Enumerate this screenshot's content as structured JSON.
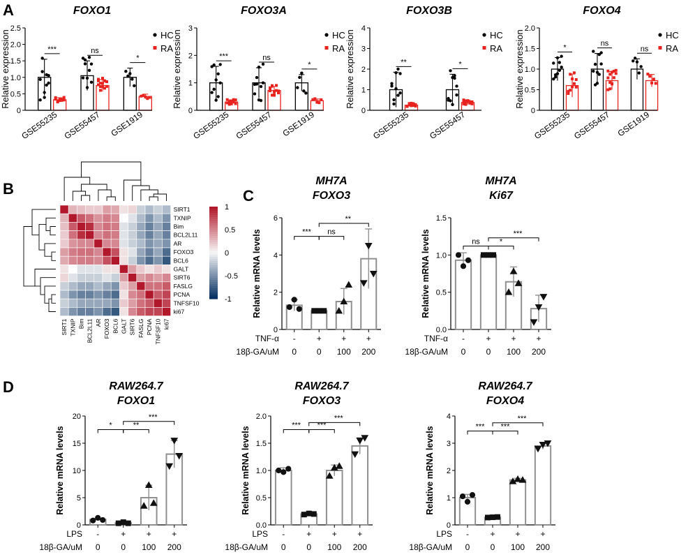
{
  "colors": {
    "hc": "#000000",
    "ra": "#e8231f",
    "bar": "#909090",
    "point": "#111111"
  },
  "panels": {
    "A": {
      "letter": "A",
      "legend": [
        "HC",
        "RA"
      ],
      "ylabel": "Relative expression"
    },
    "B": {
      "letter": "B"
    },
    "C": {
      "letter": "C",
      "ylabel": "Relative mRNA levels"
    },
    "D": {
      "letter": "D",
      "ylabel": "Relative mRNA levels"
    }
  },
  "chart_data": [
    {
      "id": "A1",
      "type": "bar",
      "title": "FOXO1",
      "ylabel": "Relative expression",
      "ylim": [
        0,
        2.5
      ],
      "yticks": [
        "0",
        "0.5",
        "1.0",
        "1.5",
        "2.0",
        "2.5"
      ],
      "ytick_values": [
        0,
        0.5,
        1,
        1.5,
        2,
        2.5
      ],
      "categories": [
        "GSE55235",
        "GSE55457",
        "GSE1919"
      ],
      "series": [
        {
          "name": "HC",
          "values": [
            1.0,
            1.05,
            1.0
          ],
          "errors": [
            0.55,
            0.45,
            0.28
          ],
          "n": [
            10,
            10,
            5
          ]
        },
        {
          "name": "RA",
          "values": [
            0.32,
            0.75,
            0.42
          ],
          "errors": [
            0.06,
            0.18,
            0.07
          ],
          "n": [
            10,
            13,
            5
          ]
        }
      ],
      "significance": [
        "***",
        "ns",
        "*"
      ]
    },
    {
      "id": "A2",
      "type": "bar",
      "title": "FOXO3A",
      "ylabel": "Relative expression",
      "ylim": [
        0,
        3
      ],
      "yticks": [
        "0",
        "1",
        "2",
        "3"
      ],
      "ytick_values": [
        0,
        1,
        2,
        3
      ],
      "categories": [
        "GSE55235",
        "GSE55457",
        "GSE1919"
      ],
      "series": [
        {
          "name": "HC",
          "values": [
            1.0,
            1.0,
            1.0
          ],
          "errors": [
            0.6,
            0.55,
            0.3
          ],
          "n": [
            10,
            10,
            5
          ]
        },
        {
          "name": "RA",
          "values": [
            0.3,
            0.72,
            0.35
          ],
          "errors": [
            0.08,
            0.15,
            0.06
          ],
          "n": [
            10,
            13,
            5
          ]
        }
      ],
      "significance": [
        "***",
        "ns",
        "*"
      ]
    },
    {
      "id": "A3",
      "type": "bar",
      "title": "FOXO3B",
      "ylabel": "Relative expression",
      "ylim": [
        0,
        4
      ],
      "yticks": [
        "0",
        "1",
        "2",
        "3",
        "4"
      ],
      "ytick_values": [
        0,
        1,
        2,
        3,
        4
      ],
      "categories": [
        "GSE55235",
        "GSE55457"
      ],
      "series": [
        {
          "name": "HC",
          "values": [
            1.0,
            1.0
          ],
          "errors": [
            0.85,
            0.75
          ],
          "n": [
            10,
            10
          ]
        },
        {
          "name": "RA",
          "values": [
            0.25,
            0.38
          ],
          "errors": [
            0.08,
            0.1
          ],
          "n": [
            10,
            13
          ]
        }
      ],
      "significance": [
        "**",
        "*"
      ]
    },
    {
      "id": "A4",
      "type": "bar",
      "title": "FOXO4",
      "ylabel": "Relative expression",
      "ylim": [
        0,
        2.0
      ],
      "yticks": [
        "0",
        "0.5",
        "1.0",
        "1.5",
        "2.0"
      ],
      "ytick_values": [
        0,
        0.5,
        1,
        1.5,
        2
      ],
      "categories": [
        "GSE55235",
        "GSE55457",
        "GSE1919"
      ],
      "series": [
        {
          "name": "HC",
          "values": [
            1.0,
            1.0,
            1.0
          ],
          "errors": [
            0.28,
            0.38,
            0.25
          ],
          "n": [
            10,
            10,
            5
          ]
        },
        {
          "name": "RA",
          "values": [
            0.6,
            0.72,
            0.72
          ],
          "errors": [
            0.28,
            0.22,
            0.15
          ],
          "n": [
            10,
            13,
            5
          ]
        }
      ],
      "significance": [
        "*",
        "ns",
        "ns"
      ]
    },
    {
      "id": "B",
      "type": "heatmap",
      "labels": [
        "SIRT1",
        "TXNIP",
        "Bim",
        "BCL2L11",
        "AR",
        "FOXO3",
        "BCL6",
        "GALT",
        "SIRT6",
        "FASLG",
        "PCNA",
        "TNFSF10",
        "ki67"
      ],
      "colorbar": {
        "min": -1,
        "max": 1,
        "ticks": [
          "1",
          "0.5",
          "0",
          "-0.5",
          "-1"
        ]
      },
      "matrix": [
        [
          1,
          0.3,
          0.25,
          0.2,
          0.2,
          0.4,
          0.35,
          0.1,
          0.15,
          -0.2,
          -0.3,
          -0.2,
          -0.3
        ],
        [
          0.3,
          1,
          0.7,
          0.6,
          0.45,
          0.55,
          0.5,
          0,
          -0.1,
          -0.3,
          -0.5,
          -0.3,
          -0.5
        ],
        [
          0.25,
          0.7,
          1,
          0.9,
          0.5,
          0.6,
          0.55,
          -0.1,
          -0.2,
          -0.4,
          -0.6,
          -0.4,
          -0.6
        ],
        [
          0.2,
          0.6,
          0.9,
          1,
          0.5,
          0.6,
          0.55,
          -0.1,
          -0.2,
          -0.4,
          -0.6,
          -0.4,
          -0.6
        ],
        [
          0.2,
          0.45,
          0.5,
          0.5,
          1,
          0.5,
          0.5,
          -0.1,
          -0.2,
          -0.3,
          -0.5,
          -0.4,
          -0.5
        ],
        [
          0.4,
          0.55,
          0.6,
          0.6,
          0.5,
          1,
          0.75,
          0.1,
          -0.1,
          -0.4,
          -0.6,
          -0.4,
          -0.7
        ],
        [
          0.35,
          0.5,
          0.55,
          0.55,
          0.5,
          0.75,
          1,
          0.1,
          -0.2,
          -0.5,
          -0.7,
          -0.5,
          -0.8
        ],
        [
          0.1,
          0,
          -0.1,
          -0.1,
          -0.1,
          0.1,
          0.1,
          1,
          0.4,
          0.2,
          0.1,
          0.2,
          0.1
        ],
        [
          0.15,
          -0.1,
          -0.2,
          -0.2,
          -0.2,
          -0.1,
          -0.2,
          0.4,
          1,
          0.4,
          0.5,
          0.4,
          0.5
        ],
        [
          -0.2,
          -0.3,
          -0.4,
          -0.4,
          -0.3,
          -0.4,
          -0.5,
          0.2,
          0.4,
          1,
          0.6,
          0.6,
          0.7
        ],
        [
          -0.3,
          -0.5,
          -0.6,
          -0.6,
          -0.5,
          -0.6,
          -0.7,
          0.1,
          0.5,
          0.6,
          1,
          0.7,
          0.8
        ],
        [
          -0.2,
          -0.3,
          -0.4,
          -0.4,
          -0.4,
          -0.4,
          -0.5,
          0.2,
          0.4,
          0.6,
          0.7,
          1,
          0.8
        ],
        [
          -0.3,
          -0.5,
          -0.6,
          -0.6,
          -0.5,
          -0.7,
          -0.8,
          0.1,
          0.5,
          0.7,
          0.8,
          0.8,
          1
        ]
      ]
    },
    {
      "id": "C1",
      "type": "bar",
      "title_lines": [
        "MH7A",
        "FOXO3"
      ],
      "ylabel": "Relative mRNA levels",
      "ylim": [
        0,
        6
      ],
      "yticks": [
        "0",
        "2",
        "4",
        "6"
      ],
      "ytick_values": [
        0,
        2,
        4,
        6
      ],
      "condition_labels": [
        "TNF-α",
        "18β-GA/uM"
      ],
      "conditions": [
        [
          "-",
          "+",
          "+",
          "+"
        ],
        [
          "0",
          "0",
          "100",
          "200"
        ]
      ],
      "values": [
        1.3,
        1.0,
        1.5,
        3.8
      ],
      "errors": [
        0.3,
        0.05,
        0.7,
        1.6
      ],
      "markers": [
        "circle",
        "square",
        "triangle",
        "triangle-down"
      ],
      "points": [
        [
          1.2,
          1.6,
          1.1
        ],
        [
          1.0,
          1.0,
          1.0
        ],
        [
          1.0,
          1.5,
          2.4
        ],
        [
          2.5,
          4.5,
          3.0
        ]
      ],
      "brackets": [
        {
          "from": 0,
          "to": 1,
          "label": "***",
          "level": 5.0
        },
        {
          "from": 1,
          "to": 2,
          "label": "ns",
          "level": 5.0
        },
        {
          "from": 1,
          "to": 3,
          "label": "**",
          "level": 5.7
        }
      ]
    },
    {
      "id": "C2",
      "type": "bar",
      "title_lines": [
        "MH7A",
        "Ki67"
      ],
      "ylabel": "Relative mRNA levels",
      "ylim": [
        0,
        1.5
      ],
      "yticks": [
        "0.0",
        "0.5",
        "1.0",
        "1.5"
      ],
      "ytick_values": [
        0,
        0.5,
        1,
        1.5
      ],
      "condition_labels": [
        "TNF-α",
        "18β-GA/uM"
      ],
      "conditions": [
        [
          "-",
          "+",
          "+",
          "+"
        ],
        [
          "0",
          "0",
          "100",
          "200"
        ]
      ],
      "values": [
        0.93,
        1.0,
        0.64,
        0.28
      ],
      "errors": [
        0.1,
        0.01,
        0.2,
        0.18
      ],
      "markers": [
        "circle",
        "square",
        "triangle",
        "triangle-down"
      ],
      "points": [
        [
          1.0,
          0.85,
          0.93
        ],
        [
          1.0,
          1.0,
          1.0
        ],
        [
          0.5,
          0.78,
          0.62
        ],
        [
          0.1,
          0.3,
          0.44
        ]
      ],
      "brackets": [
        {
          "from": 0,
          "to": 1,
          "label": "ns",
          "level": 1.12
        },
        {
          "from": 1,
          "to": 2,
          "label": "*",
          "level": 1.12
        },
        {
          "from": 1,
          "to": 3,
          "label": "***",
          "level": 1.23
        }
      ]
    },
    {
      "id": "D1",
      "type": "bar",
      "title_lines": [
        "RAW264.7",
        "FOXO1"
      ],
      "ylabel": "Relative mRNA levels",
      "ylim": [
        0,
        20
      ],
      "yticks": [
        "0",
        "5",
        "10",
        "15",
        "20"
      ],
      "ytick_values": [
        0,
        5,
        10,
        15,
        20
      ],
      "condition_labels": [
        "LPS",
        "18β-GA/uM"
      ],
      "conditions": [
        [
          "-",
          "+",
          "+",
          "+"
        ],
        [
          "0",
          "0",
          "100",
          "200"
        ]
      ],
      "values": [
        1.0,
        0.35,
        5.0,
        13.0
      ],
      "errors": [
        0.2,
        0.15,
        2.3,
        2.5
      ],
      "markers": [
        "circle",
        "square",
        "triangle",
        "triangle-down"
      ],
      "points": [
        [
          0.8,
          1.3,
          0.9
        ],
        [
          0.3,
          0.5,
          0.3
        ],
        [
          3.5,
          7.3,
          4.0
        ],
        [
          10.8,
          15.5,
          12.7
        ]
      ],
      "brackets": [
        {
          "from": 0,
          "to": 1,
          "label": "*",
          "level": 17.5
        },
        {
          "from": 1,
          "to": 2,
          "label": "**",
          "level": 17.5
        },
        {
          "from": 1,
          "to": 3,
          "label": "***",
          "level": 19.0
        }
      ]
    },
    {
      "id": "D2",
      "type": "bar",
      "title_lines": [
        "RAW264.7",
        "FOXO3"
      ],
      "ylabel": "Relative mRNA levels",
      "ylim": [
        0,
        2.0
      ],
      "yticks": [
        "0.0",
        "0.5",
        "1.0",
        "1.5",
        "2.0"
      ],
      "ytick_values": [
        0,
        0.5,
        1,
        1.5,
        2
      ],
      "condition_labels": [
        "LPS",
        "18β-GA/uM"
      ],
      "conditions": [
        [
          "-",
          "+",
          "+",
          "+"
        ],
        [
          "0",
          "0",
          "100",
          "200"
        ]
      ],
      "values": [
        1.0,
        0.2,
        1.0,
        1.45
      ],
      "errors": [
        0.05,
        0.02,
        0.1,
        0.15
      ],
      "markers": [
        "circle",
        "square",
        "triangle",
        "triangle-down"
      ],
      "points": [
        [
          1.0,
          0.97,
          1.03
        ],
        [
          0.19,
          0.21,
          0.2
        ],
        [
          0.9,
          1.05,
          1.08
        ],
        [
          1.3,
          1.55,
          1.6
        ]
      ],
      "brackets": [
        {
          "from": 0,
          "to": 1,
          "label": "***",
          "level": 1.75
        },
        {
          "from": 1,
          "to": 2,
          "label": "***",
          "level": 1.75
        },
        {
          "from": 1,
          "to": 3,
          "label": "***",
          "level": 1.88
        }
      ]
    },
    {
      "id": "D3",
      "type": "bar",
      "title_lines": [
        "RAW264.7",
        "FOXO4"
      ],
      "ylabel": "Relative mRNA levels",
      "ylim": [
        0,
        4
      ],
      "yticks": [
        "0",
        "1",
        "2",
        "3",
        "4"
      ],
      "ytick_values": [
        0,
        1,
        2,
        3,
        4
      ],
      "condition_labels": [
        "LPS",
        "18β-GA/uM"
      ],
      "conditions": [
        [
          "-",
          "+",
          "+",
          "+"
        ],
        [
          "0",
          "0",
          "100",
          "200"
        ]
      ],
      "values": [
        1.0,
        0.28,
        1.65,
        2.9
      ],
      "errors": [
        0.12,
        0.02,
        0.06,
        0.12
      ],
      "markers": [
        "circle",
        "square",
        "triangle",
        "triangle-down"
      ],
      "points": [
        [
          1.05,
          0.85,
          1.1
        ],
        [
          0.27,
          0.28,
          0.29
        ],
        [
          1.6,
          1.68,
          1.65
        ],
        [
          2.8,
          2.95,
          3.0
        ]
      ],
      "brackets": [
        {
          "from": 0,
          "to": 1,
          "label": "***",
          "level": 3.45
        },
        {
          "from": 1,
          "to": 2,
          "label": "***",
          "level": 3.45
        },
        {
          "from": 1,
          "to": 3,
          "label": "***",
          "level": 3.75
        }
      ]
    }
  ]
}
